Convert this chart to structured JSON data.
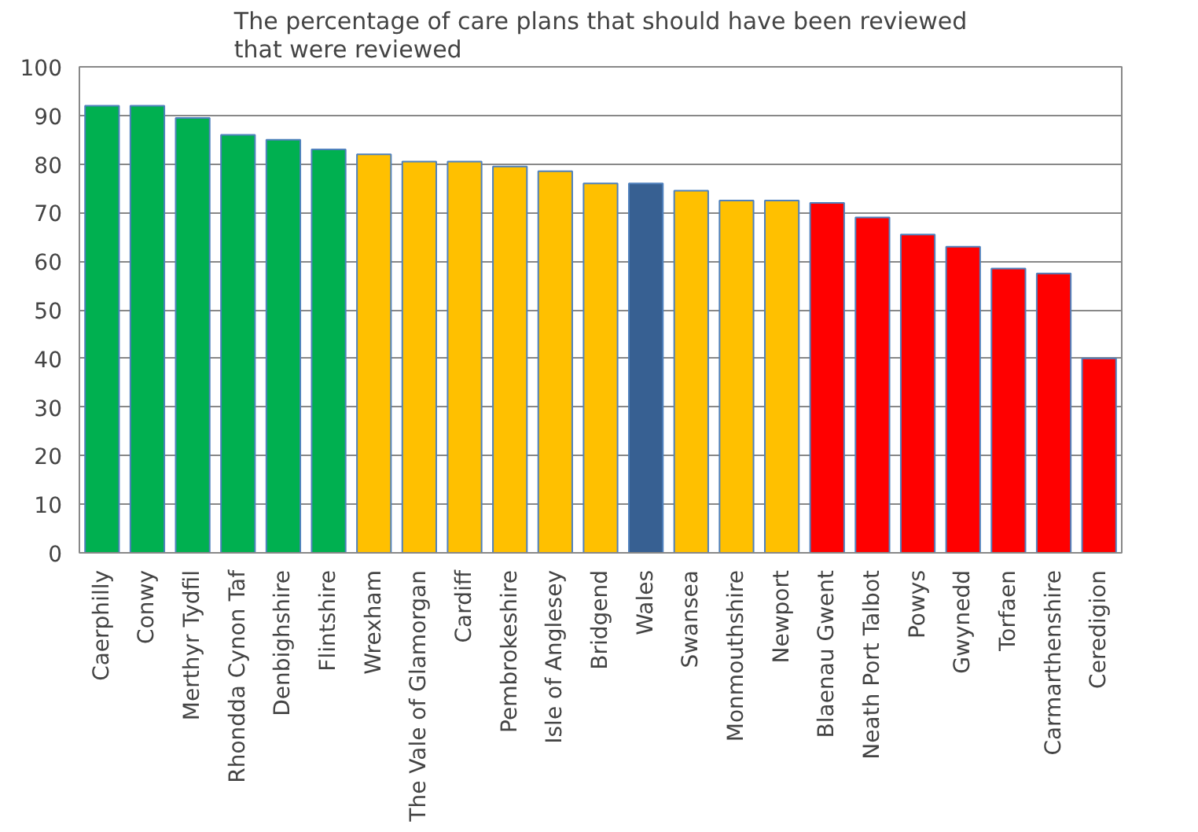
{
  "chart_data": {
    "type": "bar",
    "title": "The percentage of care plans that should have been reviewed that were reviewed",
    "categories": [
      "Caerphilly",
      "Conwy",
      "Merthyr Tydfil",
      "Rhondda Cynon Taf",
      "Denbighshire",
      "Flintshire",
      "Wrexham",
      "The Vale of Glamorgan",
      "Cardiff",
      "Pembrokeshire",
      "Isle of Anglesey",
      "Bridgend",
      "Wales",
      "Swansea",
      "Monmouthshire",
      "Newport",
      "Blaenau Gwent",
      "Neath Port Talbot",
      "Powys",
      "Gwynedd",
      "Torfaen",
      "Carmarthenshire",
      "Ceredigion"
    ],
    "values": [
      92,
      92,
      89.5,
      86,
      85,
      83,
      82,
      80.5,
      80.5,
      79.5,
      78.5,
      76,
      76,
      74.5,
      72.5,
      72.5,
      72,
      69,
      65.5,
      63,
      58.5,
      57.5,
      40
    ],
    "colors": [
      "#00b050",
      "#00b050",
      "#00b050",
      "#00b050",
      "#00b050",
      "#00b050",
      "#ffc000",
      "#ffc000",
      "#ffc000",
      "#ffc000",
      "#ffc000",
      "#ffc000",
      "#376092",
      "#ffc000",
      "#ffc000",
      "#ffc000",
      "#ff0000",
      "#ff0000",
      "#ff0000",
      "#ff0000",
      "#ff0000",
      "#ff0000",
      "#ff0000"
    ],
    "ylim": [
      0,
      100
    ],
    "yticks": [
      0,
      10,
      20,
      30,
      40,
      50,
      60,
      70,
      80,
      90,
      100
    ],
    "grid": "y"
  }
}
